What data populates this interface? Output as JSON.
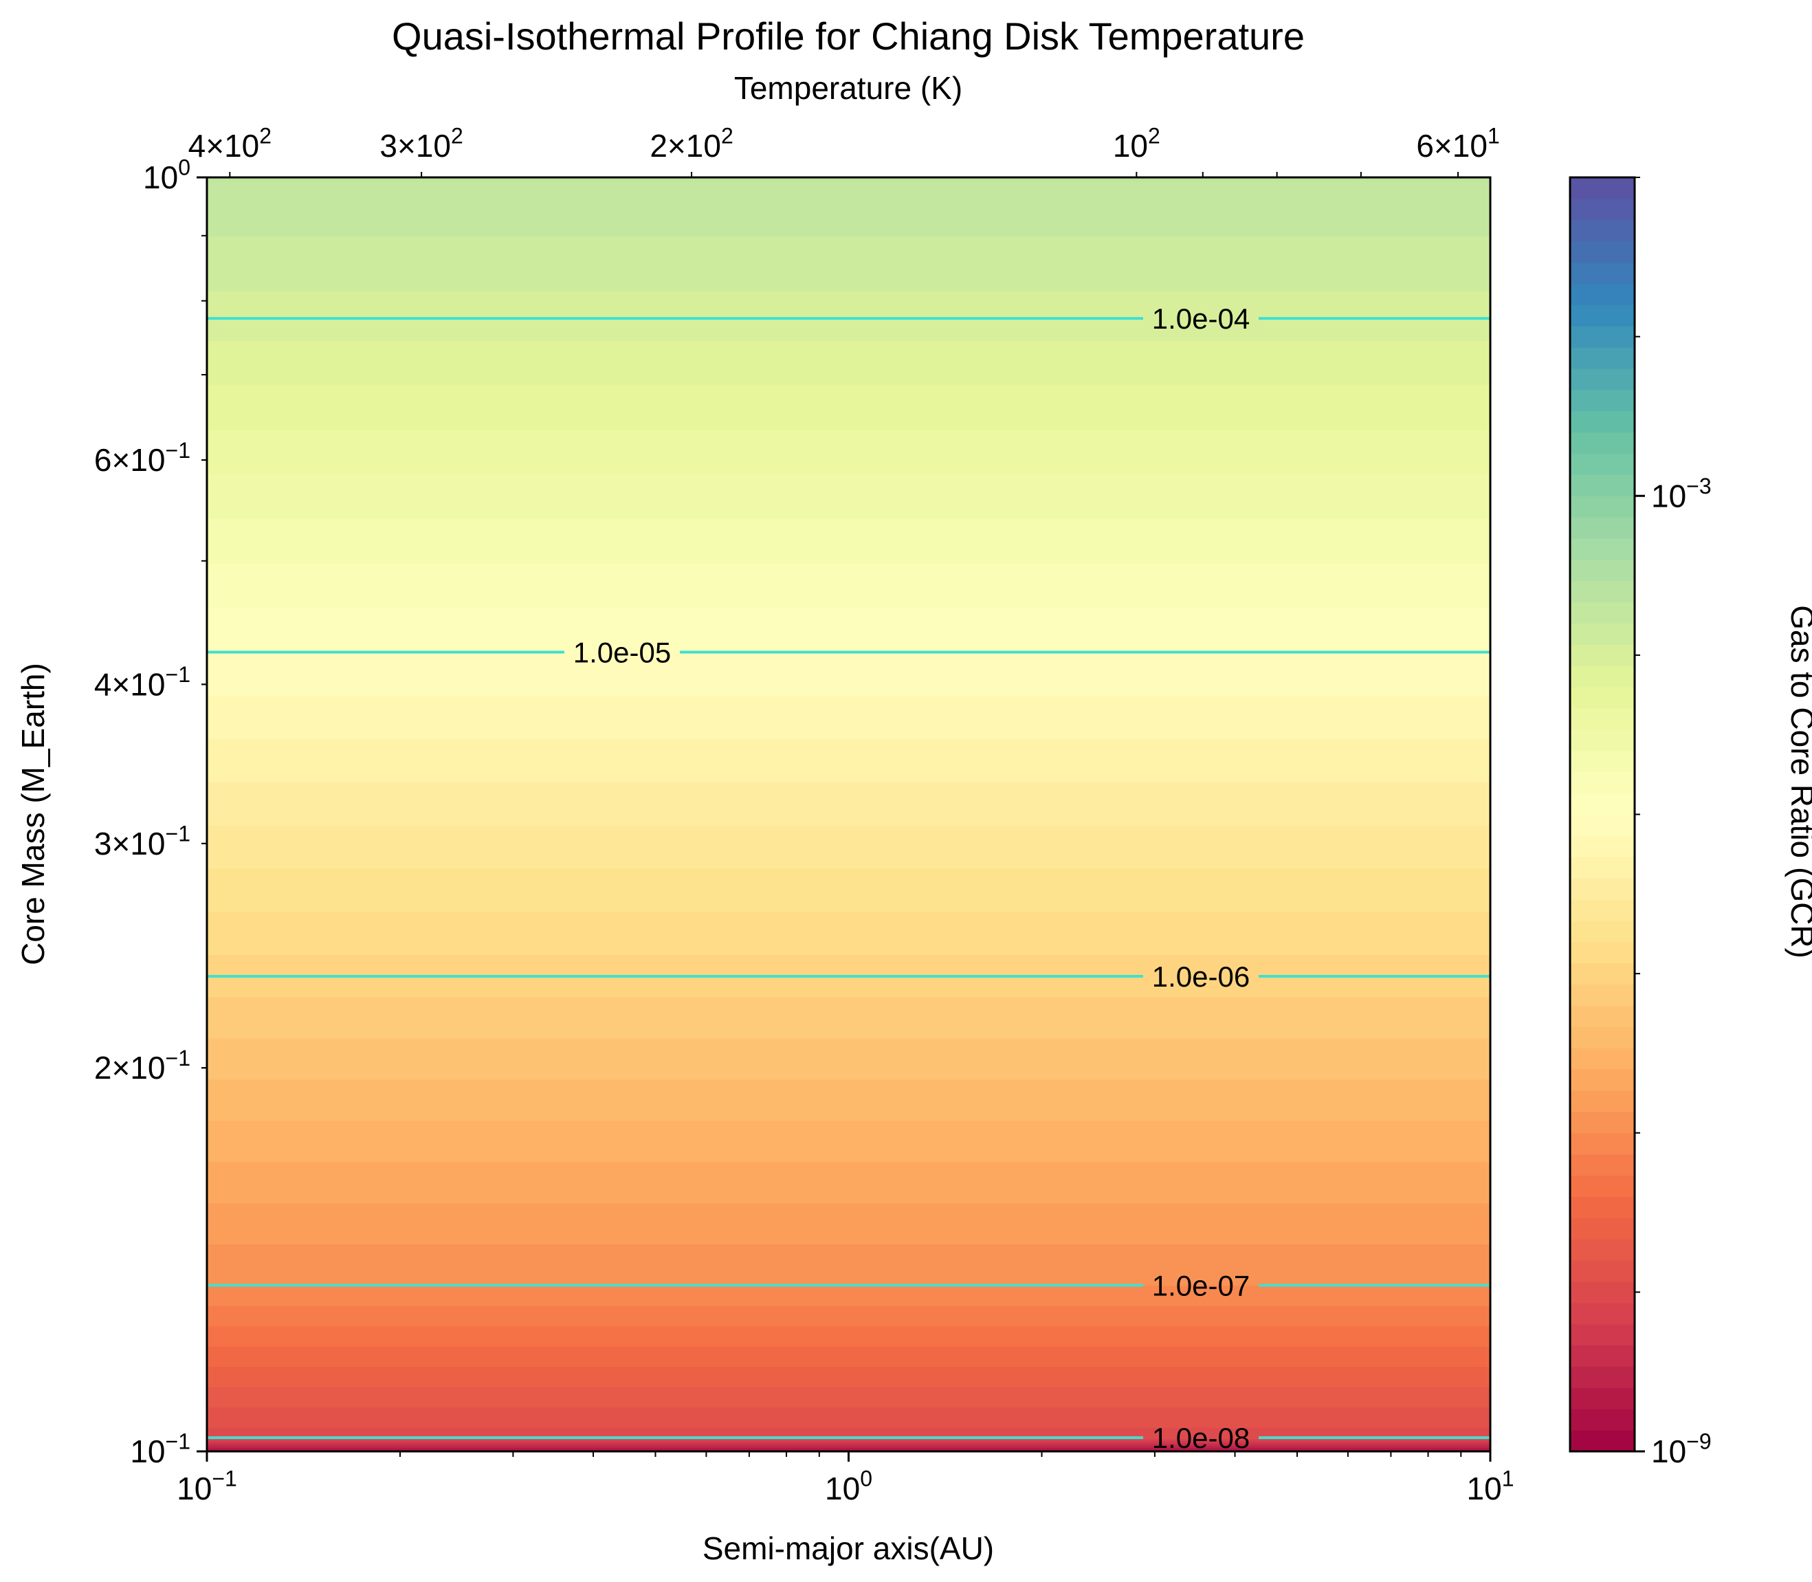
{
  "chart_data": {
    "type": "heatmap",
    "title": "Quasi-Isothermal Profile for Chiang Disk Temperature",
    "xlabel": "Semi-major axis(AU)",
    "ylabel": "Core Mass (M_Earth)",
    "top_xlabel": "Temperature (K)",
    "colorbar_label": "Gas to Core Ratio (GCR)",
    "x_scale": "log",
    "y_scale": "log",
    "xlim": [
      0.1,
      10
    ],
    "ylim": [
      0.1,
      1.0
    ],
    "x_ticks": [
      {
        "value": 0.1,
        "mant": "10",
        "exp": "−1"
      },
      {
        "value": 1,
        "mant": "10",
        "exp": "0"
      },
      {
        "value": 10,
        "mant": "10",
        "exp": "1"
      }
    ],
    "y_ticks": [
      {
        "value": 0.1,
        "mant": "10",
        "exp": "−1"
      },
      {
        "value": 0.2,
        "mant": "2×10",
        "exp": "−1"
      },
      {
        "value": 0.3,
        "mant": "3×10",
        "exp": "−1"
      },
      {
        "value": 0.4,
        "mant": "4×10",
        "exp": "−1"
      },
      {
        "value": 0.6,
        "mant": "6×10",
        "exp": "−1"
      },
      {
        "value": 1.0,
        "mant": "10",
        "exp": "0"
      }
    ],
    "top_ticks": [
      {
        "temp": 400,
        "mant": "4×10",
        "exp": "2"
      },
      {
        "temp": 300,
        "mant": "3×10",
        "exp": "2"
      },
      {
        "temp": 200,
        "mant": "2×10",
        "exp": "2"
      },
      {
        "temp": 100,
        "mant": "10",
        "exp": "2"
      },
      {
        "temp": 60,
        "mant": "6×10",
        "exp": "1"
      }
    ],
    "temperature_at_x": [
      [
        0.1,
        414
      ],
      [
        1,
        158
      ],
      [
        10,
        57
      ]
    ],
    "colorbar": {
      "scale": "log",
      "range": [
        1e-09,
        0.1
      ],
      "ticks": [
        {
          "value": 1e-09,
          "mant": "10",
          "exp": "−9"
        },
        {
          "value": 0.001,
          "mant": "10",
          "exp": "−3"
        }
      ],
      "colormap": "Spectral",
      "levels": 60
    },
    "contours": [
      {
        "label": "1.0e-04",
        "value": 0.0001,
        "core_mass": 0.775
      },
      {
        "label": "1.0e-05",
        "value": 1e-05,
        "core_mass": 0.424
      },
      {
        "label": "1.0e-06",
        "value": 1e-06,
        "core_mass": 0.236
      },
      {
        "label": "1.0e-07",
        "value": 1e-07,
        "core_mass": 0.135
      },
      {
        "label": "1.0e-08",
        "value": 1e-08,
        "core_mass": 0.1025
      }
    ],
    "contour_color": "#40e0d0",
    "gcr_at_core_mass": [
      [
        0.1,
        1.5e-09
      ],
      [
        0.1025,
        1e-08
      ],
      [
        0.135,
        1e-07
      ],
      [
        0.236,
        1e-06
      ],
      [
        0.424,
        1e-05
      ],
      [
        0.775,
        0.0001
      ],
      [
        1.0,
        0.00022
      ]
    ]
  }
}
